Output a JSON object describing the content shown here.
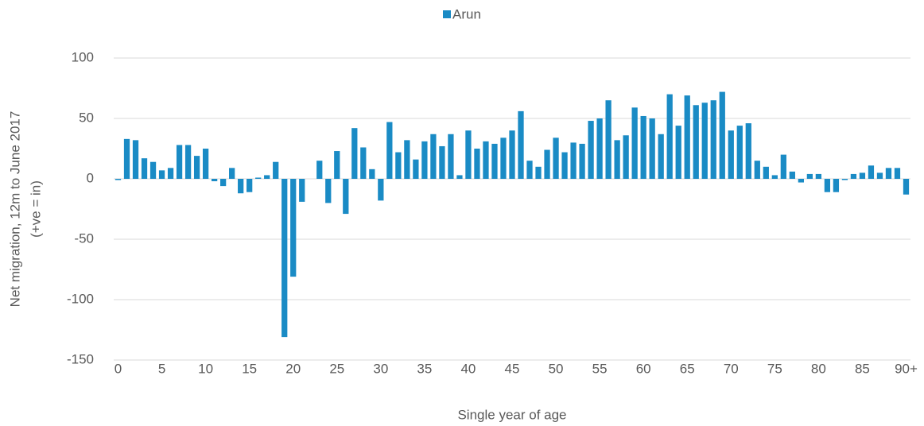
{
  "chart_data": {
    "type": "bar",
    "legend": "Arun",
    "legend_position": "top",
    "x_label": "Single year of age",
    "y_label": [
      "Net migration, 12m to June 2017",
      "(+ve = in)"
    ],
    "color": "#1a8bc5",
    "categories": [
      "0",
      null,
      null,
      null,
      null,
      "5",
      null,
      null,
      null,
      null,
      "10",
      null,
      null,
      null,
      null,
      "15",
      null,
      null,
      null,
      null,
      "20",
      null,
      null,
      null,
      null,
      "25",
      null,
      null,
      null,
      null,
      "30",
      null,
      null,
      null,
      null,
      "35",
      null,
      null,
      null,
      null,
      "40",
      null,
      null,
      null,
      null,
      "45",
      null,
      null,
      null,
      null,
      "50",
      null,
      null,
      null,
      null,
      "55",
      null,
      null,
      null,
      null,
      "60",
      null,
      null,
      null,
      null,
      "65",
      null,
      null,
      null,
      null,
      "70",
      null,
      null,
      null,
      null,
      "75",
      null,
      null,
      null,
      null,
      "80",
      null,
      null,
      null,
      null,
      "85",
      null,
      null,
      null,
      null,
      "90+"
    ],
    "values": [
      -1,
      33,
      32,
      17,
      14,
      7,
      9,
      28,
      28,
      19,
      25,
      -2,
      -6,
      9,
      -12,
      -11,
      1,
      3,
      14,
      -131,
      -81,
      -19,
      0,
      15,
      -20,
      23,
      -29,
      42,
      26,
      8,
      -18,
      47,
      22,
      32,
      16,
      31,
      37,
      27,
      37,
      3,
      40,
      25,
      31,
      29,
      34,
      40,
      56,
      15,
      10,
      24,
      34,
      22,
      30,
      29,
      48,
      50,
      65,
      32,
      36,
      59,
      52,
      50,
      37,
      70,
      44,
      69,
      61,
      63,
      65,
      72,
      40,
      44,
      46,
      15,
      10,
      3,
      20,
      6,
      -3,
      4,
      4,
      -11,
      -11,
      -1,
      4,
      5,
      11,
      5,
      9,
      9,
      -13
    ],
    "ylim": [
      -150,
      100
    ],
    "yticks": [
      -150,
      -100,
      -50,
      0,
      50,
      100
    ],
    "grid": true
  }
}
